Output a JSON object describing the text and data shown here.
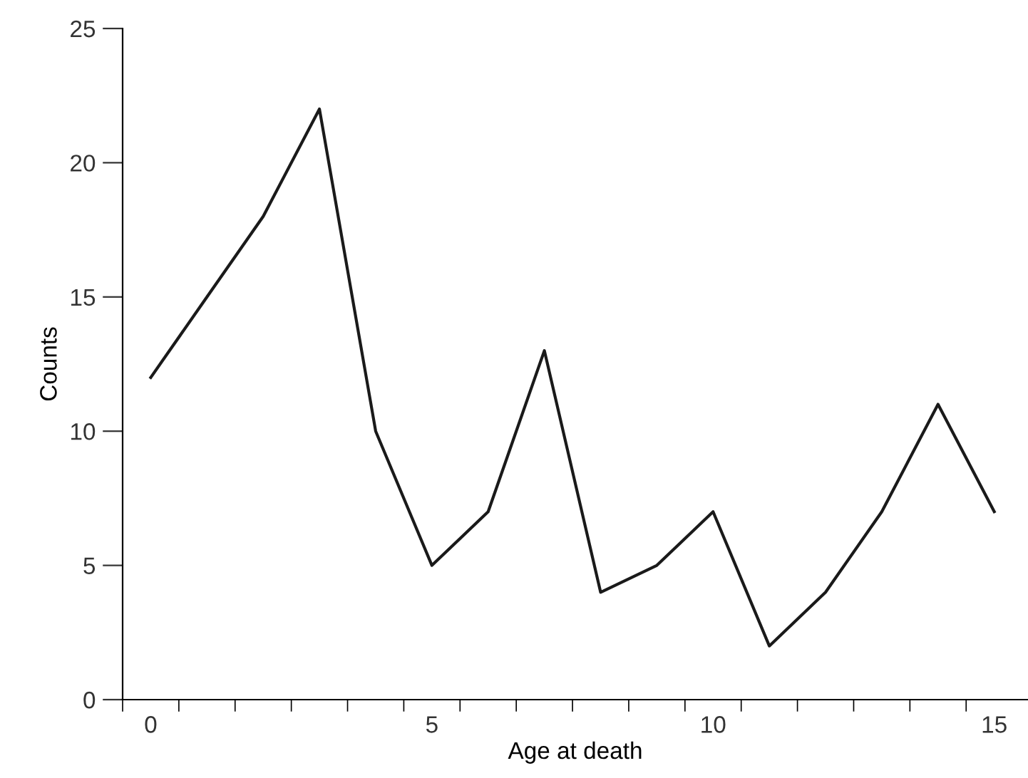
{
  "chart_data": {
    "type": "line",
    "xlabel": "Age at death",
    "ylabel": "Counts",
    "x": [
      0,
      1,
      2,
      3,
      4,
      5,
      6,
      7,
      8,
      9,
      10,
      11,
      12,
      13,
      14,
      15
    ],
    "values": [
      12,
      15,
      18,
      22,
      10,
      5,
      7,
      13,
      4,
      5,
      7,
      2,
      4,
      7,
      11,
      7
    ],
    "color": "#1a1a1a",
    "xlim": [
      -0.5,
      15.6
    ],
    "xticks": [
      {
        "value": -0.5,
        "label": null
      },
      {
        "value": 0,
        "label": "0"
      },
      {
        "value": 0.5,
        "label": null
      },
      {
        "value": 1.5,
        "label": null
      },
      {
        "value": 2.5,
        "label": null
      },
      {
        "value": 3.5,
        "label": null
      },
      {
        "value": 4.5,
        "label": null
      },
      {
        "value": 5,
        "label": "5"
      },
      {
        "value": 5.5,
        "label": null
      },
      {
        "value": 6.5,
        "label": null
      },
      {
        "value": 7.5,
        "label": null
      },
      {
        "value": 8.5,
        "label": null
      },
      {
        "value": 9.5,
        "label": null
      },
      {
        "value": 10,
        "label": "10"
      },
      {
        "value": 10.5,
        "label": null
      },
      {
        "value": 11.5,
        "label": null
      },
      {
        "value": 12.5,
        "label": null
      },
      {
        "value": 13.5,
        "label": null
      },
      {
        "value": 14.5,
        "label": null
      },
      {
        "value": 15,
        "label": "15"
      }
    ],
    "ylim": [
      0,
      25
    ],
    "yticks": [
      0,
      5,
      10,
      15,
      20,
      25
    ],
    "grid": false,
    "legend": false,
    "marker": "none",
    "line_style": "solid"
  }
}
